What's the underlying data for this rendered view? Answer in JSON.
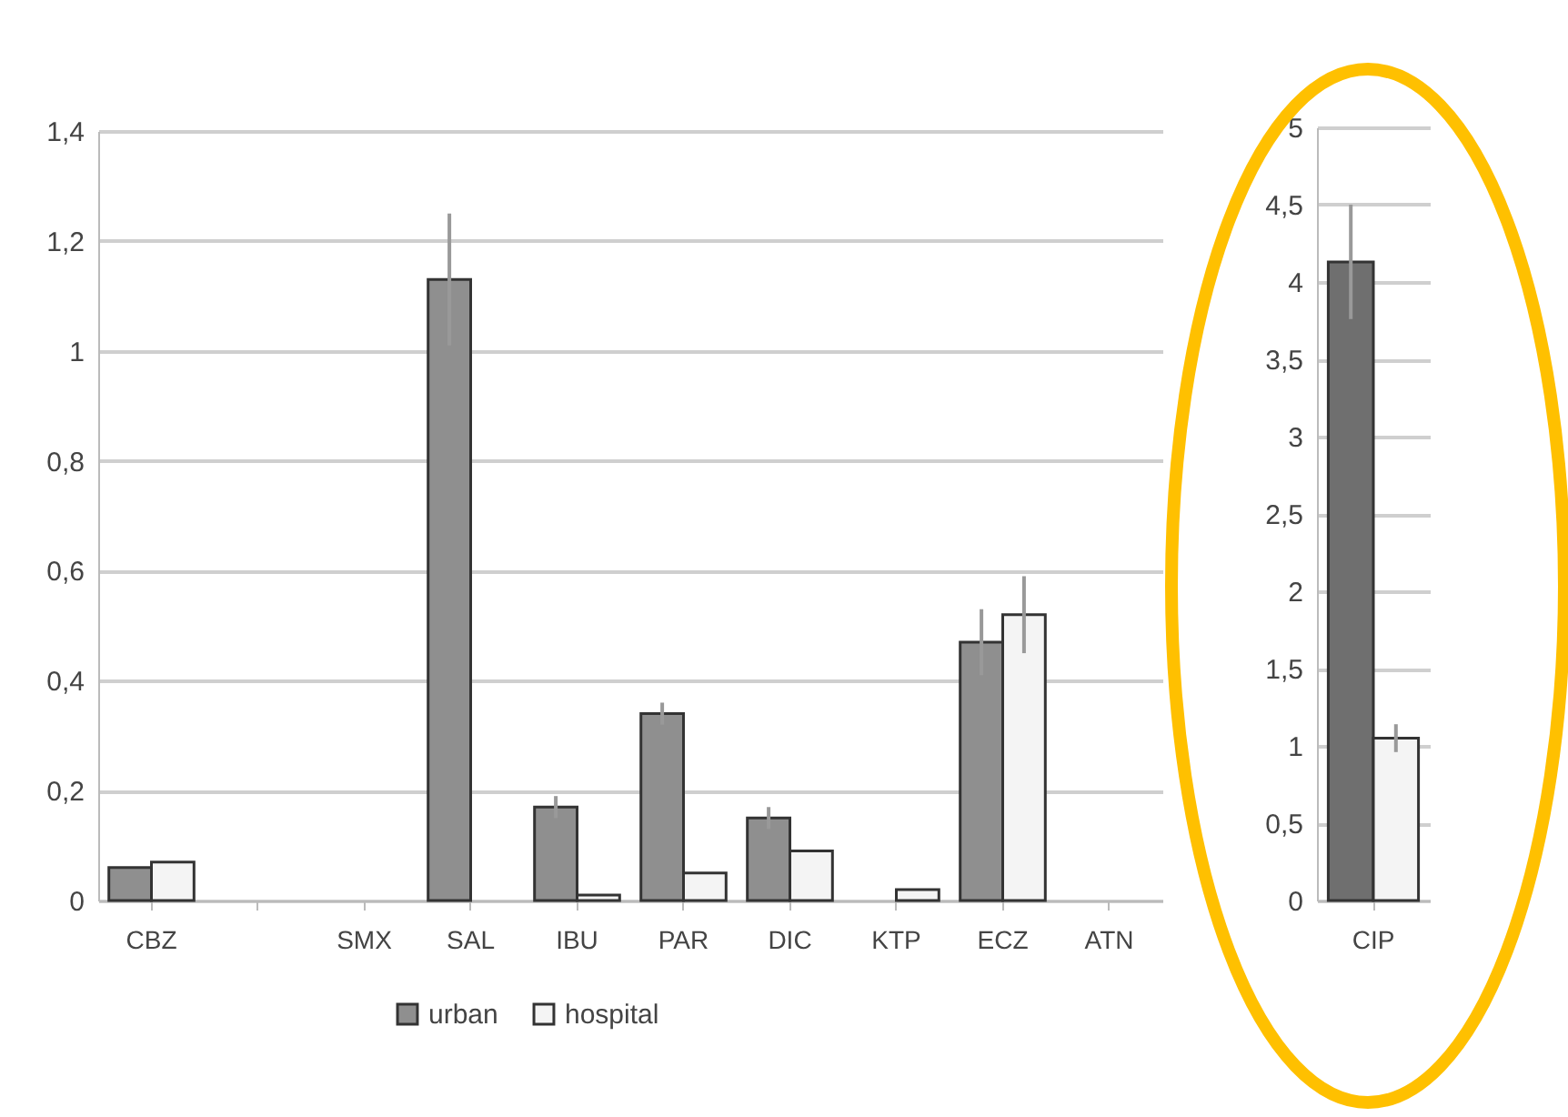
{
  "chart_data": [
    {
      "type": "bar",
      "categories": [
        "CBZ",
        null,
        "SMX",
        "SAL",
        "IBU",
        "PAR",
        "DIC",
        "KTP",
        "ECZ",
        "ATN"
      ],
      "series": [
        {
          "name": "urban",
          "color": "#8f8f8f",
          "values": [
            0.06,
            null,
            null,
            1.13,
            0.17,
            0.34,
            0.15,
            null,
            0.47,
            null
          ],
          "errors": [
            null,
            null,
            null,
            0.12,
            0.02,
            0.02,
            0.02,
            null,
            0.06,
            null
          ]
        },
        {
          "name": "hospital",
          "color": "#f4f4f4",
          "values": [
            0.07,
            null,
            null,
            null,
            0.01,
            0.05,
            0.09,
            0.02,
            0.52,
            null
          ],
          "errors": [
            null,
            null,
            null,
            null,
            null,
            null,
            null,
            null,
            0.07,
            null
          ]
        }
      ],
      "ylim": [
        0,
        1.4
      ],
      "yticks": [
        0,
        {
          "value": 0.2,
          "label": "0,2"
        },
        {
          "value": 0.4,
          "label": "0,4"
        },
        {
          "value": 0.6,
          "label": "0,6"
        },
        {
          "value": 0.8,
          "label": "0,8"
        },
        1,
        {
          "value": 1.2,
          "label": "1,2"
        },
        {
          "value": 1.4,
          "label": "1,4"
        }
      ],
      "grid": "y",
      "legend": "bottom"
    },
    {
      "type": "bar",
      "categories": [
        "CIP"
      ],
      "series": [
        {
          "color": "#6f6f6f",
          "values": [
            4.13
          ],
          "errors": [
            0.37
          ]
        },
        {
          "color": "#f4f4f4",
          "values": [
            1.05
          ],
          "errors": [
            0.09
          ]
        }
      ],
      "ylim": [
        0,
        5
      ],
      "yticks": [
        0,
        {
          "value": 0.5,
          "label": "0,5"
        },
        1,
        {
          "value": 1.5,
          "label": "1,5"
        },
        2,
        {
          "value": 2.5,
          "label": "2,5"
        },
        3,
        {
          "value": 3.5,
          "label": "3,5"
        },
        4,
        {
          "value": 4.5,
          "label": "4,5"
        },
        5
      ],
      "grid": "y",
      "legend": false
    }
  ]
}
